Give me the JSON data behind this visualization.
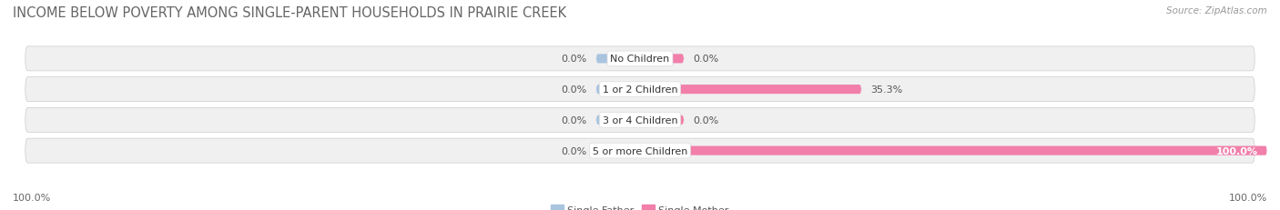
{
  "title": "INCOME BELOW POVERTY AMONG SINGLE-PARENT HOUSEHOLDS IN PRAIRIE CREEK",
  "source": "Source: ZipAtlas.com",
  "categories": [
    "No Children",
    "1 or 2 Children",
    "3 or 4 Children",
    "5 or more Children"
  ],
  "single_father": [
    0.0,
    0.0,
    0.0,
    0.0
  ],
  "single_mother": [
    0.0,
    35.3,
    0.0,
    100.0
  ],
  "father_color": "#a8c4df",
  "mother_color": "#f17faa",
  "row_bg_color": "#eeeeee",
  "row_bg_alt": "#f7f7f7",
  "title_fontsize": 10.5,
  "label_fontsize": 8,
  "category_fontsize": 8,
  "source_fontsize": 7.5,
  "legend_fontsize": 8,
  "axis_label_left": "100.0%",
  "axis_label_right": "100.0%",
  "max_val": 100.0,
  "stub_val": 7.0,
  "background_color": "#ffffff"
}
